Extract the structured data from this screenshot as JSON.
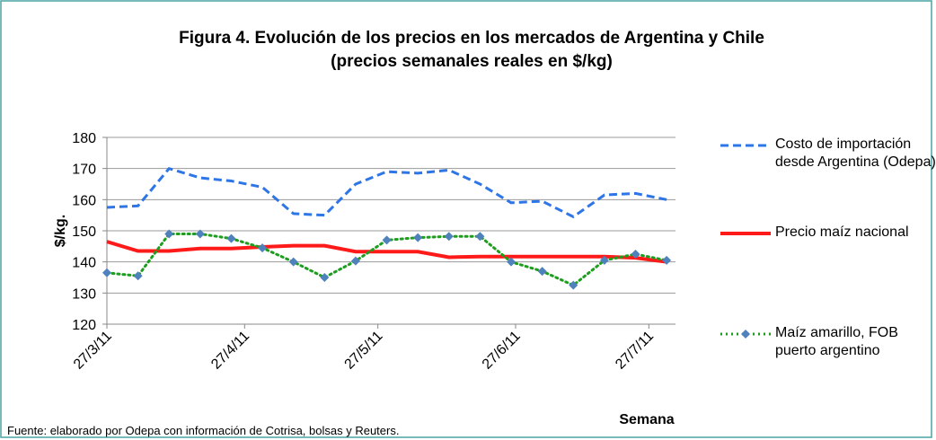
{
  "chart_data": {
    "type": "line",
    "title": "Figura 4. Evolución de los precios en los mercados de Argentina y Chile",
    "subtitle": "(precios semanales reales en $/kg)",
    "y_label": "$/kg.",
    "x_label": "Semana",
    "source": "Fuente: elaborado por Odepa con información de Cotrisa, bolsas y Reuters.",
    "x": [
      "27/3/11",
      "3/4/11",
      "10/4/11",
      "17/4/11",
      "24/4/11",
      "1/5/11",
      "8/5/11",
      "15/5/11",
      "22/5/11",
      "29/5/11",
      "5/6/11",
      "12/6/11",
      "19/6/11",
      "26/6/11",
      "3/7/11",
      "10/7/11",
      "17/7/11",
      "24/7/11",
      "31/7/11"
    ],
    "xlim": [
      "27/3/11",
      "2/8/11"
    ],
    "xticks": [
      "27/3/11",
      "27/4/11",
      "27/5/11",
      "27/6/11",
      "27/7/11"
    ],
    "ylim": [
      120,
      180
    ],
    "yticks": [
      120,
      130,
      140,
      150,
      160,
      170,
      180
    ],
    "grid": true,
    "series": [
      {
        "name": "Costo de importación desde Argentina (Odepa)",
        "color": "#2e75e6",
        "dash": "dashed",
        "values": [
          157.5,
          158,
          170,
          167,
          166,
          164,
          155.5,
          155,
          165,
          169,
          168.5,
          169.5,
          165,
          159,
          159.5,
          154.5,
          161.5,
          162,
          160
        ]
      },
      {
        "name": "Precio maíz nacional",
        "color": "#ff1a1a",
        "dash": "solid",
        "values": [
          146.5,
          143.5,
          143.5,
          144.3,
          144.3,
          144.8,
          145.2,
          145.2,
          143.3,
          143.3,
          143.3,
          141.5,
          141.7,
          141.7,
          141.7,
          141.7,
          141.7,
          141.3,
          140
        ]
      },
      {
        "name": "Maíz amarillo, FOB puerto argentino",
        "color": "#1e9e1e",
        "dash": "dotted",
        "marker": "#4f81bd",
        "values": [
          136.5,
          135.5,
          149,
          149,
          147.5,
          144.5,
          140,
          135,
          140.3,
          147,
          147.8,
          148.2,
          148.2,
          140,
          137,
          132.5,
          140.5,
          142.5,
          140.5
        ]
      }
    ]
  }
}
